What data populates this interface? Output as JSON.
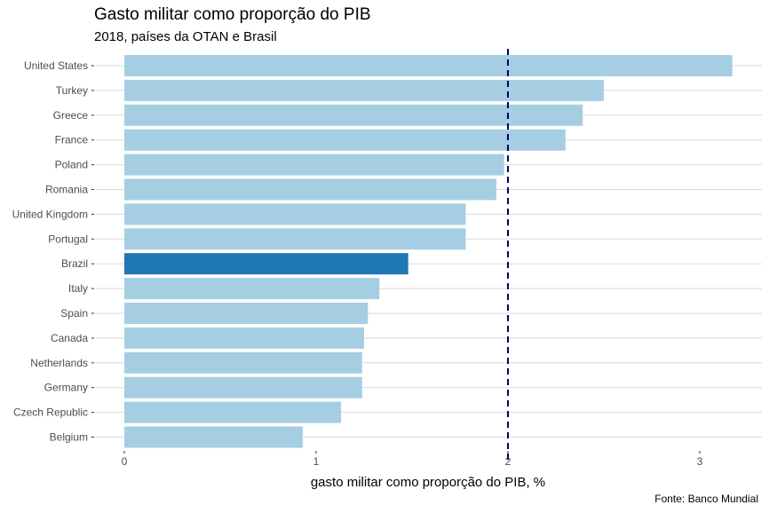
{
  "chart_data": {
    "type": "bar",
    "orientation": "horizontal",
    "title": "Gasto militar como proporção do PIB",
    "subtitle": "2018, países da OTAN e Brasil",
    "caption": "Fonte: Banco Mundial",
    "xlabel": "gasto militar como proporção do PIB, %",
    "ylabel": "",
    "xlim": [
      0,
      3.2
    ],
    "xticks": [
      "0",
      "1",
      "2",
      "3"
    ],
    "xtick_values": [
      0,
      1,
      2,
      3
    ],
    "reference_line": {
      "value": 2,
      "style": "dashed",
      "color": "#000066"
    },
    "grid": true,
    "colors": {
      "default": "#a6cee3",
      "highlight": "#1f78b4"
    },
    "highlight": "Brazil",
    "categories": [
      "United States",
      "Turkey",
      "Greece",
      "France",
      "Poland",
      "Romania",
      "United Kingdom",
      "Portugal",
      "Brazil",
      "Italy",
      "Spain",
      "Canada",
      "Netherlands",
      "Germany",
      "Czech Republic",
      "Belgium"
    ],
    "values": [
      3.17,
      2.5,
      2.39,
      2.3,
      1.98,
      1.94,
      1.78,
      1.78,
      1.48,
      1.33,
      1.27,
      1.25,
      1.24,
      1.24,
      1.13,
      0.93
    ]
  }
}
